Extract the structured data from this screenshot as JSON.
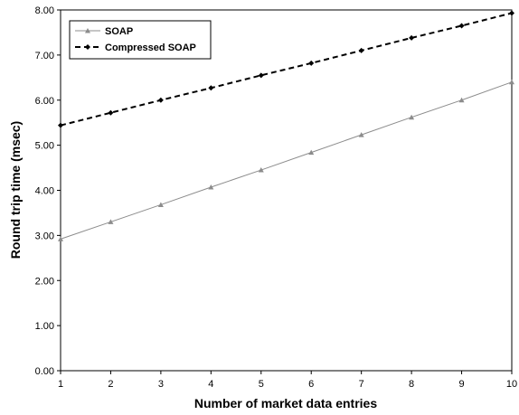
{
  "chart_data": {
    "type": "line",
    "title": "",
    "xlabel": "Number of market data entries",
    "ylabel": "Round trip time (msec)",
    "x": [
      1,
      2,
      3,
      4,
      5,
      6,
      7,
      8,
      9,
      10
    ],
    "x_ticks": [
      "1",
      "2",
      "3",
      "4",
      "5",
      "6",
      "7",
      "8",
      "9",
      "10"
    ],
    "y_ticks": [
      "0.00",
      "1.00",
      "2.00",
      "3.00",
      "4.00",
      "5.00",
      "6.00",
      "7.00",
      "8.00"
    ],
    "ylim": [
      0,
      8
    ],
    "xlim": [
      1,
      10
    ],
    "grid": false,
    "legend_position": "top-left",
    "series": [
      {
        "name": "SOAP",
        "values": [
          2.92,
          3.3,
          3.68,
          4.07,
          4.45,
          4.84,
          5.23,
          5.62,
          6.0,
          6.4
        ],
        "color": "#8c8c8c",
        "line_style": "solid",
        "marker": "triangle"
      },
      {
        "name": "Compressed SOAP",
        "values": [
          5.44,
          5.72,
          6.0,
          6.27,
          6.55,
          6.82,
          7.1,
          7.38,
          7.65,
          7.93
        ],
        "color": "#000000",
        "line_style": "dashed",
        "marker": "diamond"
      }
    ]
  }
}
